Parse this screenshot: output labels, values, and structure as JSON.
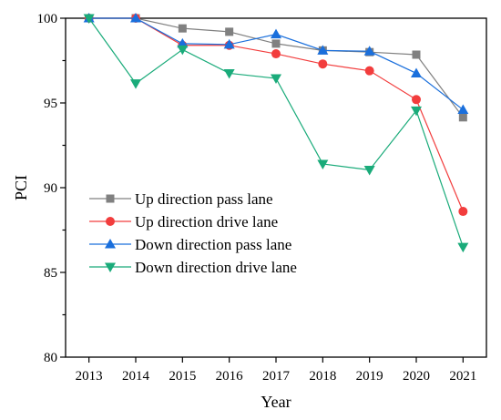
{
  "chart_data": {
    "type": "line",
    "xlabel": "Year",
    "ylabel": "PCI",
    "x": [
      "2013",
      "2014",
      "2015",
      "2016",
      "2017",
      "2018",
      "2019",
      "2020",
      "2021"
    ],
    "xlim": [
      2012.5,
      2021.5
    ],
    "ylim": [
      80,
      100
    ],
    "yticks": [
      80,
      85,
      90,
      95,
      100
    ],
    "grid": false,
    "legend_position": "left-center",
    "series": [
      {
        "name": "Up direction pass lane",
        "marker": "square",
        "color": "#808080",
        "values": [
          100,
          100,
          99.4,
          99.2,
          98.5,
          98.1,
          98.0,
          97.85,
          94.15
        ]
      },
      {
        "name": "Up direction drive lane",
        "marker": "circle",
        "color": "#f23d3d",
        "values": [
          100,
          100,
          98.4,
          98.4,
          97.9,
          97.3,
          96.9,
          95.2,
          88.6
        ]
      },
      {
        "name": "Down direction pass lane",
        "marker": "triangle-up",
        "color": "#1a6fdc",
        "values": [
          100,
          100,
          98.5,
          98.45,
          99.05,
          98.1,
          98.05,
          96.75,
          94.6
        ]
      },
      {
        "name": "Down direction drive lane",
        "marker": "triangle-down",
        "color": "#1aab7a",
        "values": [
          100,
          96.15,
          98.15,
          96.75,
          96.45,
          91.4,
          91.05,
          94.55,
          86.5
        ]
      }
    ]
  }
}
